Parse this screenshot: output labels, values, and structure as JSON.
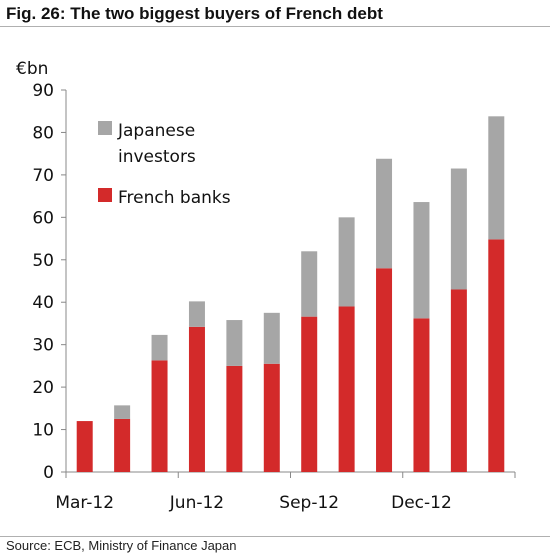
{
  "title": "Fig. 26: The two biggest buyers of French debt",
  "source": "Source: ECB, Ministry of Finance Japan",
  "chart_data": {
    "type": "bar",
    "stacked": true,
    "ylabel": "€bn",
    "ylim": [
      0,
      90
    ],
    "yticks": [
      0,
      10,
      20,
      30,
      40,
      50,
      60,
      70,
      80,
      90
    ],
    "x_tick_labels": [
      "Mar-12",
      "Jun-12",
      "Sep-12",
      "Dec-12"
    ],
    "bar_count": 12,
    "colors": {
      "french_banks": "#d32a2a",
      "japanese_investors": "#a6a6a6"
    },
    "legend_position": "top-left",
    "legend": [
      "Japanese investors",
      "French banks"
    ],
    "series": [
      {
        "name": "French banks",
        "values": [
          12,
          12.5,
          26.3,
          34.2,
          25,
          25.5,
          36.6,
          39,
          48,
          36.2,
          43,
          54.8
        ]
      },
      {
        "name": "Japanese investors",
        "values": [
          0,
          3.2,
          6,
          6,
          10.8,
          12,
          15.4,
          21,
          25.8,
          27.4,
          28.5,
          29
        ]
      }
    ]
  }
}
